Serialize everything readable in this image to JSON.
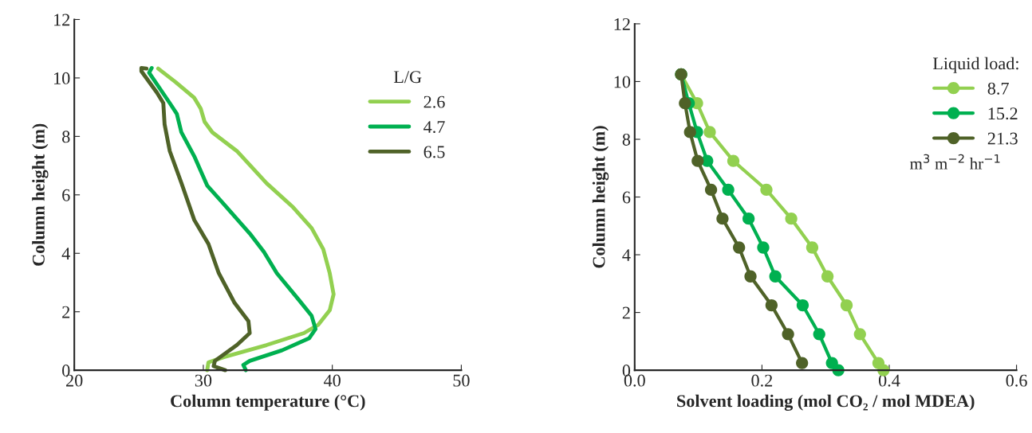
{
  "chart_data": [
    {
      "type": "line",
      "xlabel": "Column temperature (°C)",
      "ylabel": "Column height (m)",
      "legend_title": "L/G",
      "legend": "top right",
      "grid": false,
      "marker": "none",
      "xlim": [
        20,
        50
      ],
      "xticks": [
        20,
        30,
        40,
        50
      ],
      "ylim": [
        0,
        12
      ],
      "yticks": [
        0,
        2,
        4,
        6,
        8,
        10,
        12
      ],
      "series": [
        {
          "name": "2.6",
          "color": "#92d050",
          "x": [
            26.5,
            27.85,
            29.3,
            29.8,
            30.1,
            30.7,
            32.6,
            34.9,
            36.9,
            38.4,
            39.3,
            39.8,
            40.1,
            39.8,
            38.9,
            37.8,
            34.9,
            31.6,
            30.4,
            30.3
          ],
          "values": [
            10.32,
            9.86,
            9.32,
            8.95,
            8.5,
            8.14,
            7.5,
            6.4,
            5.6,
            4.86,
            4.14,
            3.32,
            2.6,
            2.05,
            1.55,
            1.27,
            0.86,
            0.45,
            0.27,
            0
          ]
        },
        {
          "name": "4.7",
          "color": "#00b050",
          "x": [
            26.0,
            25.8,
            27.4,
            27.95,
            28.3,
            29.3,
            30.3,
            31.6,
            33.6,
            34.7,
            35.7,
            37.4,
            38.4,
            38.7,
            38.2,
            36.1,
            33.6,
            33.1,
            33.3
          ],
          "values": [
            10.34,
            10.18,
            9.14,
            8.77,
            8.14,
            7.32,
            6.32,
            5.68,
            4.68,
            4.05,
            3.32,
            2.41,
            1.86,
            1.41,
            1.09,
            0.68,
            0.32,
            0.18,
            0
          ]
        },
        {
          "name": "6.5",
          "color": "#4f6228",
          "x": [
            25.6,
            25.2,
            25.2,
            26.4,
            26.9,
            27.0,
            27.4,
            28.3,
            29.3,
            30.4,
            31.2,
            32.4,
            33.5,
            33.6,
            32.6,
            30.9,
            30.8,
            31.7
          ],
          "values": [
            10.32,
            10.34,
            10.23,
            9.5,
            9.14,
            8.41,
            7.5,
            6.41,
            5.14,
            4.32,
            3.32,
            2.32,
            1.68,
            1.27,
            0.86,
            0.32,
            0.14,
            0
          ]
        }
      ]
    },
    {
      "type": "line",
      "xlabel": "Solvent loading (mol CO₂ / mol MDEA)",
      "ylabel": "Column height (m)",
      "legend_title": "Liquid load:",
      "legend": "top right",
      "grid": false,
      "marker": "circle",
      "annotations": [
        "m$^{3}$ m$^{−2}$ hr$^{−1}$"
      ],
      "xlim": [
        0,
        0.6
      ],
      "xticks": [
        {
          "value": 0,
          "label": "0.0"
        },
        {
          "value": 0.2,
          "label": "0.2"
        },
        {
          "value": 0.4,
          "label": "0.4"
        },
        {
          "value": 0.6,
          "label": "0.6"
        }
      ],
      "ylim": [
        0,
        12
      ],
      "yticks": [
        0,
        2,
        4,
        6,
        8,
        10,
        12
      ],
      "series": [
        {
          "name": "8.7",
          "color": "#92d050",
          "x": [
            0.073,
            0.098,
            0.118,
            0.155,
            0.207,
            0.246,
            0.279,
            0.303,
            0.333,
            0.354,
            0.383,
            0.391
          ],
          "values": [
            10.25,
            9.25,
            8.25,
            7.25,
            6.25,
            5.25,
            4.25,
            3.25,
            2.25,
            1.25,
            0.25,
            0
          ]
        },
        {
          "name": "15.2",
          "color": "#00b050",
          "x": [
            0.073,
            0.085,
            0.098,
            0.114,
            0.147,
            0.179,
            0.202,
            0.221,
            0.264,
            0.29,
            0.31,
            0.32
          ],
          "values": [
            10.25,
            9.25,
            8.25,
            7.25,
            6.25,
            5.25,
            4.25,
            3.25,
            2.25,
            1.25,
            0.25,
            0
          ]
        },
        {
          "name": "21.3",
          "color": "#4f6228",
          "x": [
            0.073,
            0.079,
            0.087,
            0.099,
            0.12,
            0.138,
            0.164,
            0.182,
            0.215,
            0.241,
            0.263
          ],
          "values": [
            10.25,
            9.25,
            8.25,
            7.25,
            6.25,
            5.25,
            4.25,
            3.25,
            2.25,
            1.25,
            0.25
          ]
        }
      ]
    }
  ]
}
